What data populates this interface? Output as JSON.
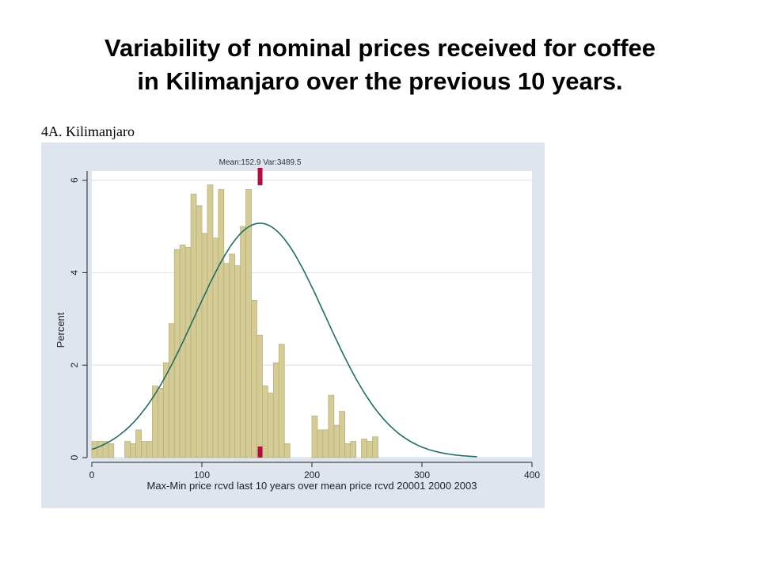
{
  "slide": {
    "title_line1": "Variability of nominal prices received for coffee",
    "title_line2": "in Kilimanjaro over the previous 10 years."
  },
  "chart_data": {
    "type": "bar",
    "panel_label": "4A. Kilimanjaro",
    "xlabel": "Max-Min price rcvd last 10 years over mean price rcvd 20001 2000 2003",
    "ylabel": "Percent",
    "xlim": [
      0,
      400
    ],
    "ylim": [
      0,
      6.2
    ],
    "xticks": [
      0,
      100,
      200,
      300,
      400
    ],
    "yticks": [
      0,
      2,
      4,
      6
    ],
    "grid": true,
    "bin_width": 5,
    "bins": [
      {
        "x": 0,
        "y": 0.35
      },
      {
        "x": 5,
        "y": 0.35
      },
      {
        "x": 10,
        "y": 0.35
      },
      {
        "x": 15,
        "y": 0.3
      },
      {
        "x": 30,
        "y": 0.35
      },
      {
        "x": 35,
        "y": 0.3
      },
      {
        "x": 40,
        "y": 0.6
      },
      {
        "x": 45,
        "y": 0.35
      },
      {
        "x": 50,
        "y": 0.35
      },
      {
        "x": 55,
        "y": 1.55
      },
      {
        "x": 60,
        "y": 1.5
      },
      {
        "x": 65,
        "y": 2.05
      },
      {
        "x": 70,
        "y": 2.9
      },
      {
        "x": 75,
        "y": 4.5
      },
      {
        "x": 80,
        "y": 4.6
      },
      {
        "x": 85,
        "y": 4.55
      },
      {
        "x": 90,
        "y": 5.7
      },
      {
        "x": 95,
        "y": 5.45
      },
      {
        "x": 100,
        "y": 4.85
      },
      {
        "x": 105,
        "y": 5.9
      },
      {
        "x": 110,
        "y": 4.75
      },
      {
        "x": 115,
        "y": 5.8
      },
      {
        "x": 120,
        "y": 4.2
      },
      {
        "x": 125,
        "y": 4.4
      },
      {
        "x": 130,
        "y": 4.15
      },
      {
        "x": 135,
        "y": 5.0
      },
      {
        "x": 140,
        "y": 5.8
      },
      {
        "x": 145,
        "y": 3.4
      },
      {
        "x": 150,
        "y": 2.65
      },
      {
        "x": 155,
        "y": 1.55
      },
      {
        "x": 160,
        "y": 1.4
      },
      {
        "x": 165,
        "y": 2.05
      },
      {
        "x": 170,
        "y": 2.45
      },
      {
        "x": 175,
        "y": 0.3
      },
      {
        "x": 200,
        "y": 0.9
      },
      {
        "x": 205,
        "y": 0.6
      },
      {
        "x": 210,
        "y": 0.6
      },
      {
        "x": 215,
        "y": 1.35
      },
      {
        "x": 220,
        "y": 0.7
      },
      {
        "x": 225,
        "y": 1.0
      },
      {
        "x": 230,
        "y": 0.3
      },
      {
        "x": 235,
        "y": 0.35
      },
      {
        "x": 245,
        "y": 0.4
      },
      {
        "x": 250,
        "y": 0.35
      },
      {
        "x": 255,
        "y": 0.45
      }
    ],
    "normal_curve": {
      "mean": 152.9,
      "variance": 3489.5,
      "peak": 5.07,
      "x_range": [
        0,
        350
      ]
    },
    "mean_line": {
      "x": 152.9,
      "label": "Mean:152.9 Var:3489.5"
    },
    "colors": {
      "bar_fill": "#d4cc94",
      "bar_edge": "#b9b07a",
      "curve": "#1f6e66",
      "mean_marker": "#b01040",
      "panel_bg": "#dfe5ee",
      "plot_bg": "#ffffff",
      "grid": "#dfe5ee"
    }
  }
}
